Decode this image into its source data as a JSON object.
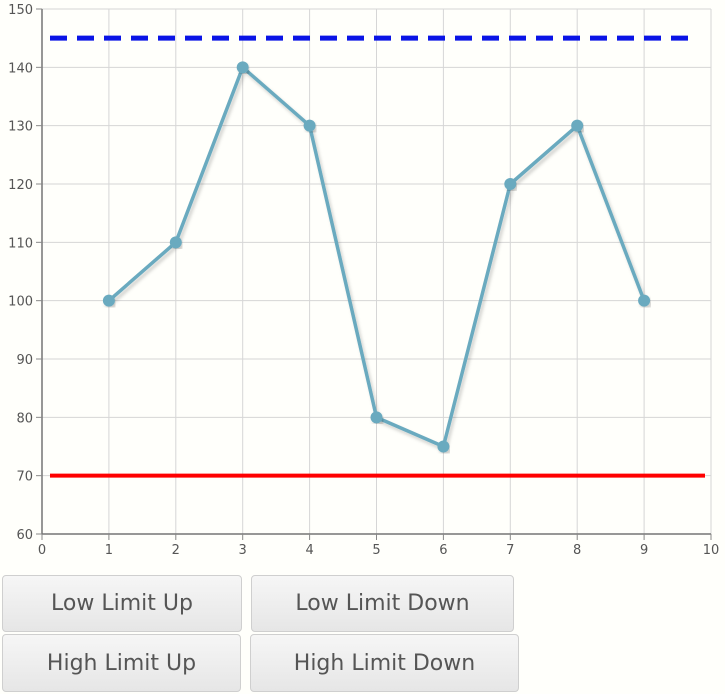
{
  "chart_data": {
    "type": "line",
    "x": [
      1,
      2,
      3,
      4,
      5,
      6,
      7,
      8,
      9
    ],
    "series": [
      {
        "values": [
          100,
          110,
          140,
          130,
          80,
          75,
          120,
          130,
          100
        ],
        "color": "#6aaabf"
      }
    ],
    "limits": {
      "high": {
        "value": 145,
        "color": "#0a14e6",
        "style": "dashed"
      },
      "low": {
        "value": 70,
        "color": "#ff0000",
        "style": "solid"
      }
    },
    "xlim": [
      0,
      10
    ],
    "ylim": [
      60,
      150
    ],
    "x_ticks": [
      0,
      1,
      2,
      3,
      4,
      5,
      6,
      7,
      8,
      9,
      10
    ],
    "y_ticks": [
      60,
      70,
      80,
      90,
      100,
      110,
      120,
      130,
      140,
      150
    ],
    "grid": true,
    "title": "",
    "xlabel": "",
    "ylabel": ""
  },
  "buttons": {
    "low_limit_up": "Low Limit Up",
    "low_limit_down": "Low Limit Down",
    "high_limit_up": "High Limit Up",
    "high_limit_down": "High Limit Down"
  }
}
